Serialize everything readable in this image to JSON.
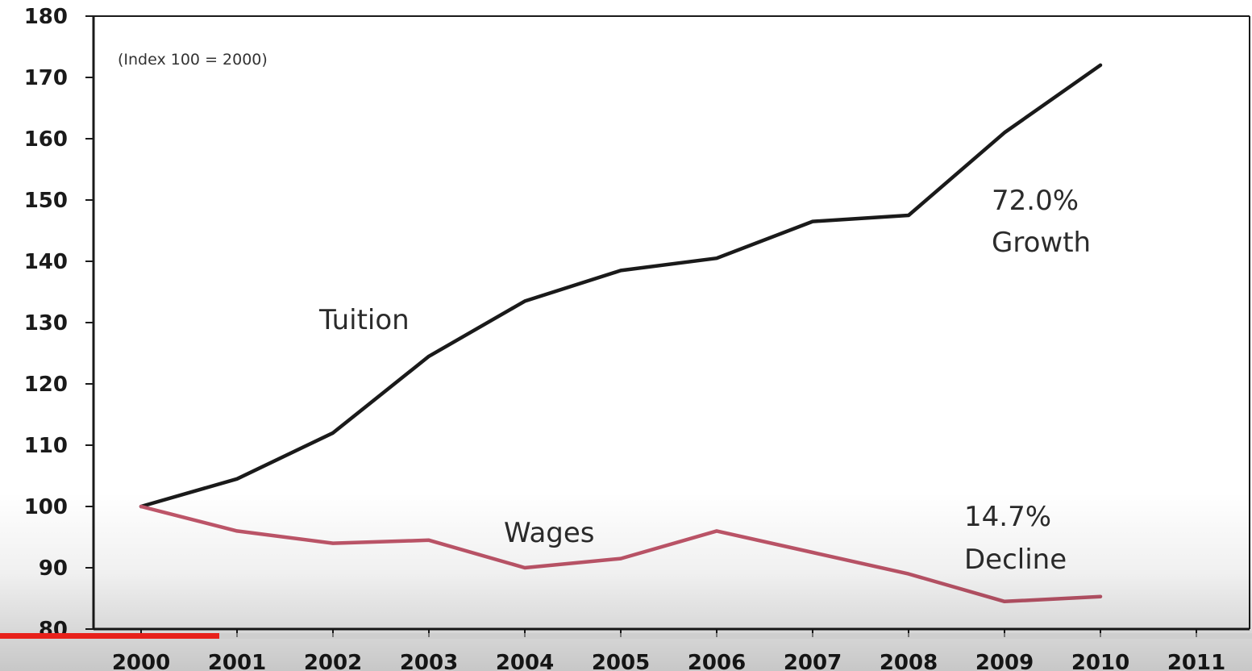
{
  "chart_data": {
    "type": "line",
    "note": "(Index 100 = 2000)",
    "x": [
      "2000",
      "2001",
      "2002",
      "2003",
      "2004",
      "2005",
      "2006",
      "2007",
      "2008",
      "2009",
      "2010"
    ],
    "x_ticks": [
      "2000",
      "2001",
      "2002",
      "2003",
      "2004",
      "2005",
      "2006",
      "2007",
      "2008",
      "2009",
      "2010",
      "2011"
    ],
    "ylim": [
      80,
      180
    ],
    "yticks": [
      80,
      90,
      100,
      110,
      120,
      130,
      140,
      150,
      160,
      170,
      180
    ],
    "grid": false,
    "legend": "none",
    "series": [
      {
        "name": "Tuition",
        "color": "#1a1a1a",
        "values": [
          100,
          104.5,
          112,
          124.5,
          133.5,
          138.5,
          140.5,
          146.5,
          147.5,
          161,
          172
        ]
      },
      {
        "name": "Wages",
        "color": "#c0566a",
        "values": [
          100,
          96,
          94,
          94.5,
          90,
          91.5,
          96,
          92.5,
          89,
          84.5,
          85.3
        ]
      }
    ],
    "annotations": [
      {
        "id": "tuition-growth",
        "lines": [
          "72.0%",
          "Growth"
        ]
      },
      {
        "id": "wages-decline",
        "lines": [
          "14.7%",
          "Decline"
        ]
      }
    ]
  },
  "player": {
    "progress_fraction": 0.175,
    "accent": "#e8211b"
  }
}
